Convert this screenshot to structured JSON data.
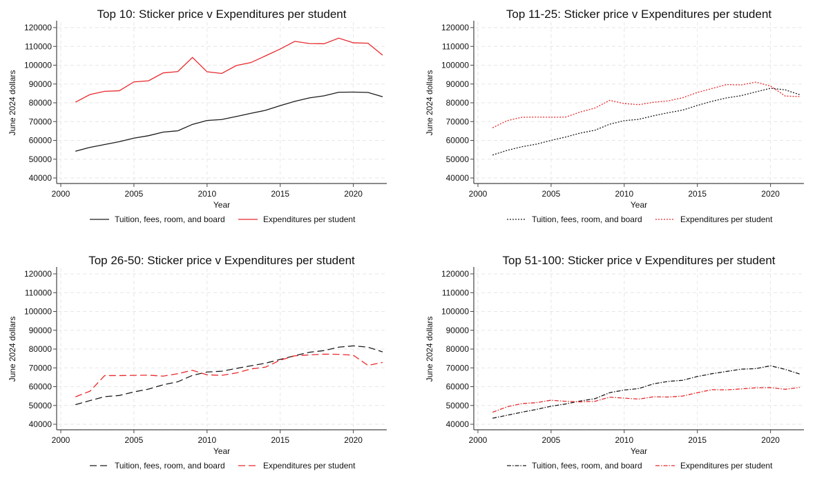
{
  "chart_data": [
    {
      "type": "line",
      "title": "Top 10: Sticker price v Expenditures per student",
      "xlabel": "Year",
      "ylabel": "June 2024 dollars",
      "xlim": [
        2000,
        2022
      ],
      "ylim": [
        40000,
        120000
      ],
      "xticks": [
        "2000",
        "2005",
        "2010",
        "2015",
        "2020"
      ],
      "yticks": [
        "40000",
        "50000",
        "60000",
        "70000",
        "80000",
        "90000",
        "100000",
        "110000",
        "120000"
      ],
      "grid": true,
      "legend": "bottom",
      "line_style": "solid",
      "x": [
        2001,
        2002,
        2003,
        2004,
        2005,
        2006,
        2007,
        2008,
        2009,
        2010,
        2011,
        2012,
        2013,
        2014,
        2015,
        2016,
        2017,
        2018,
        2019,
        2020,
        2021,
        2022
      ],
      "series": [
        {
          "name": "Tuition, fees, room, and board",
          "color": "#1a1a1a",
          "values": [
            54200,
            56300,
            57800,
            59300,
            61200,
            62500,
            64400,
            65100,
            68500,
            70600,
            71100,
            72700,
            74400,
            76000,
            78500,
            80800,
            82600,
            83700,
            85600,
            85700,
            85500,
            83200
          ]
        },
        {
          "name": "Expenditures per student",
          "color": "#e8282b",
          "values": [
            80300,
            84400,
            86100,
            86400,
            91100,
            91700,
            95900,
            96600,
            104100,
            96500,
            95600,
            99800,
            101400,
            105000,
            108600,
            112700,
            111500,
            111400,
            114400,
            111900,
            111700,
            105300
          ]
        }
      ]
    },
    {
      "type": "line",
      "title": "Top 11-25: Sticker price v Expenditures per student",
      "xlabel": "Year",
      "ylabel": "June 2024 dollars",
      "xlim": [
        2000,
        2022
      ],
      "ylim": [
        40000,
        120000
      ],
      "xticks": [
        "2000",
        "2005",
        "2010",
        "2015",
        "2020"
      ],
      "yticks": [
        "40000",
        "50000",
        "60000",
        "70000",
        "80000",
        "90000",
        "100000",
        "110000",
        "120000"
      ],
      "grid": true,
      "legend": "bottom",
      "line_style": "dotted",
      "x": [
        2001,
        2002,
        2003,
        2004,
        2005,
        2006,
        2007,
        2008,
        2009,
        2010,
        2011,
        2012,
        2013,
        2014,
        2015,
        2016,
        2017,
        2018,
        2019,
        2020,
        2021,
        2022
      ],
      "series": [
        {
          "name": "Tuition, fees, room, and board",
          "color": "#1a1a1a",
          "values": [
            52200,
            54700,
            56600,
            58000,
            60000,
            61800,
            63900,
            65400,
            68600,
            70500,
            71200,
            73100,
            74700,
            76100,
            78600,
            80800,
            82600,
            83800,
            85800,
            87700,
            86900,
            84300
          ]
        },
        {
          "name": "Expenditures per student",
          "color": "#e8282b",
          "values": [
            66700,
            70500,
            72300,
            72400,
            72300,
            72400,
            75100,
            77200,
            81300,
            79600,
            79000,
            80300,
            81000,
            82700,
            85500,
            87600,
            89700,
            89500,
            91000,
            88900,
            83600,
            83300
          ]
        }
      ]
    },
    {
      "type": "line",
      "title": "Top 26-50: Sticker price v Expenditures per student",
      "xlabel": "Year",
      "ylabel": "June 2024 dollars",
      "xlim": [
        2000,
        2022
      ],
      "ylim": [
        40000,
        120000
      ],
      "xticks": [
        "2000",
        "2005",
        "2010",
        "2015",
        "2020"
      ],
      "yticks": [
        "40000",
        "50000",
        "60000",
        "70000",
        "80000",
        "90000",
        "100000",
        "110000",
        "120000"
      ],
      "grid": true,
      "legend": "bottom",
      "line_style": "longdash",
      "x": [
        2001,
        2002,
        2003,
        2004,
        2005,
        2006,
        2007,
        2008,
        2009,
        2010,
        2011,
        2012,
        2013,
        2014,
        2015,
        2016,
        2017,
        2018,
        2019,
        2020,
        2021,
        2022
      ],
      "series": [
        {
          "name": "Tuition, fees, room, and board",
          "color": "#1a1a1a",
          "values": [
            50400,
            52600,
            54700,
            55300,
            57200,
            58700,
            61000,
            62600,
            66000,
            67800,
            68200,
            69700,
            71100,
            72500,
            74500,
            76500,
            78300,
            79200,
            81000,
            81700,
            81000,
            78500
          ]
        },
        {
          "name": "Expenditures per student",
          "color": "#e8282b",
          "values": [
            54600,
            57600,
            65900,
            65900,
            66000,
            66100,
            65600,
            66900,
            68700,
            66300,
            66000,
            67300,
            69400,
            70400,
            74100,
            76400,
            76900,
            77300,
            77200,
            76700,
            71300,
            72900
          ]
        }
      ]
    },
    {
      "type": "line",
      "title": "Top 51-100: Sticker price v Expenditures per student",
      "xlabel": "Year",
      "ylabel": "June 2024 dollars",
      "xlim": [
        2000,
        2022
      ],
      "ylim": [
        40000,
        120000
      ],
      "xticks": [
        "2000",
        "2005",
        "2010",
        "2015",
        "2020"
      ],
      "yticks": [
        "40000",
        "50000",
        "60000",
        "70000",
        "80000",
        "90000",
        "100000",
        "110000",
        "120000"
      ],
      "grid": true,
      "legend": "bottom",
      "line_style": "dashdot",
      "x": [
        2001,
        2002,
        2003,
        2004,
        2005,
        2006,
        2007,
        2008,
        2009,
        2010,
        2011,
        2012,
        2013,
        2014,
        2015,
        2016,
        2017,
        2018,
        2019,
        2020,
        2021,
        2022
      ],
      "series": [
        {
          "name": "Tuition, fees, room, and board",
          "color": "#1a1a1a",
          "values": [
            43200,
            44800,
            46400,
            47900,
            49600,
            50800,
            52400,
            53600,
            56800,
            58200,
            59000,
            61500,
            62800,
            63400,
            65400,
            66900,
            68100,
            69300,
            69600,
            71100,
            69200,
            66700
          ]
        },
        {
          "name": "Expenditures per student",
          "color": "#e8282b",
          "values": [
            46400,
            49300,
            51000,
            51500,
            52800,
            52200,
            51900,
            52200,
            54400,
            53900,
            53400,
            54600,
            54500,
            55000,
            56800,
            58400,
            58300,
            58800,
            59400,
            59500,
            58600,
            59600
          ]
        }
      ]
    }
  ]
}
